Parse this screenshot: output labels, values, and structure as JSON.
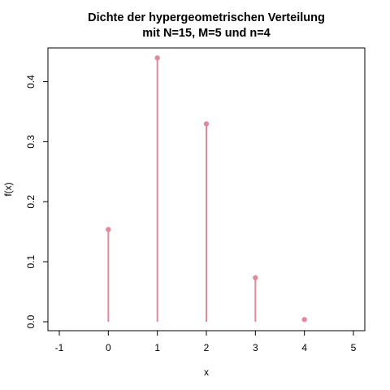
{
  "chart_data": {
    "type": "scatter",
    "style": "stem",
    "title_line1": "Dichte der hypergeometrischen Verteilung",
    "title_line2": "mit N=15, M=5 und n=4",
    "xlabel": "x",
    "ylabel": "f(x)",
    "x": [
      0,
      1,
      2,
      3,
      4
    ],
    "y": [
      0.1538,
      0.4396,
      0.3297,
      0.0733,
      0.0037
    ],
    "xlim": [
      -1,
      5
    ],
    "ylim": [
      0,
      0.44
    ],
    "x_ticks": [
      "-1",
      "0",
      "1",
      "2",
      "3",
      "4",
      "5"
    ],
    "y_ticks": [
      "0.0",
      "0.1",
      "0.2",
      "0.3",
      "0.4"
    ],
    "grid": false,
    "legend": "none",
    "color": "#e08a9e"
  }
}
